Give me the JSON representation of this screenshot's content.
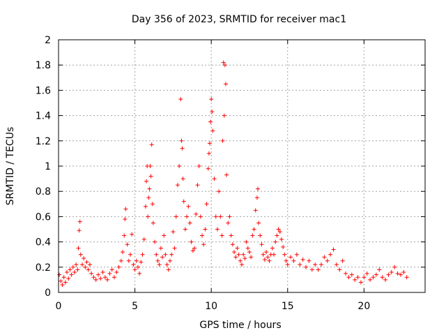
{
  "chart_data": {
    "type": "scatter",
    "title": "Day 356 of 2023, SRMTID for receiver mac1",
    "xlabel": "GPS time / hours",
    "ylabel": "SRMTID / TECUs",
    "xlim": [
      0,
      24
    ],
    "ylim": [
      0,
      2
    ],
    "xticks": [
      0,
      5,
      10,
      15,
      20
    ],
    "yticks": [
      0,
      0.2,
      0.4,
      0.6,
      0.8,
      1,
      1.2,
      1.4,
      1.6,
      1.8,
      2
    ],
    "xtick_labels": [
      "0",
      "5",
      "10",
      "15",
      "20"
    ],
    "ytick_labels": [
      "0",
      "0.2",
      "0.4",
      "0.6",
      "0.8",
      "1",
      "1.2",
      "1.4",
      "1.6",
      "1.8",
      "2"
    ],
    "grid": true,
    "marker": "+",
    "color": "#ff0000",
    "series": [
      {
        "name": "SRMTID",
        "points": [
          [
            0.05,
            0.14
          ],
          [
            0.15,
            0.09
          ],
          [
            0.25,
            0.06
          ],
          [
            0.35,
            0.12
          ],
          [
            0.45,
            0.08
          ],
          [
            0.55,
            0.16
          ],
          [
            0.65,
            0.11
          ],
          [
            0.75,
            0.18
          ],
          [
            0.85,
            0.14
          ],
          [
            0.95,
            0.2
          ],
          [
            1.05,
            0.16
          ],
          [
            1.15,
            0.22
          ],
          [
            1.25,
            0.18
          ],
          [
            1.3,
            0.35
          ],
          [
            1.35,
            0.49
          ],
          [
            1.4,
            0.56
          ],
          [
            1.45,
            0.3
          ],
          [
            1.55,
            0.22
          ],
          [
            1.65,
            0.27
          ],
          [
            1.75,
            0.2
          ],
          [
            1.85,
            0.24
          ],
          [
            1.95,
            0.18
          ],
          [
            2.05,
            0.22
          ],
          [
            2.15,
            0.15
          ],
          [
            2.3,
            0.12
          ],
          [
            2.45,
            0.1
          ],
          [
            2.6,
            0.14
          ],
          [
            2.75,
            0.11
          ],
          [
            2.9,
            0.16
          ],
          [
            3.05,
            0.12
          ],
          [
            3.2,
            0.1
          ],
          [
            3.35,
            0.15
          ],
          [
            3.5,
            0.18
          ],
          [
            3.65,
            0.12
          ],
          [
            3.8,
            0.16
          ],
          [
            3.95,
            0.2
          ],
          [
            4.1,
            0.25
          ],
          [
            4.2,
            0.32
          ],
          [
            4.3,
            0.45
          ],
          [
            4.35,
            0.58
          ],
          [
            4.4,
            0.66
          ],
          [
            4.5,
            0.38
          ],
          [
            4.6,
            0.25
          ],
          [
            4.7,
            0.3
          ],
          [
            4.8,
            0.46
          ],
          [
            4.9,
            0.22
          ],
          [
            5.0,
            0.18
          ],
          [
            5.1,
            0.25
          ],
          [
            5.2,
            0.2
          ],
          [
            5.3,
            0.15
          ],
          [
            5.4,
            0.24
          ],
          [
            5.5,
            0.3
          ],
          [
            5.6,
            0.42
          ],
          [
            5.7,
            0.68
          ],
          [
            5.75,
            0.88
          ],
          [
            5.8,
            1.0
          ],
          [
            5.85,
            0.6
          ],
          [
            5.9,
            0.75
          ],
          [
            5.95,
            0.82
          ],
          [
            6.0,
            1.0
          ],
          [
            6.05,
            0.92
          ],
          [
            6.1,
            1.17
          ],
          [
            6.15,
            0.7
          ],
          [
            6.2,
            0.55
          ],
          [
            6.3,
            0.4
          ],
          [
            6.4,
            0.3
          ],
          [
            6.5,
            0.25
          ],
          [
            6.6,
            0.22
          ],
          [
            6.7,
            0.35
          ],
          [
            6.8,
            0.28
          ],
          [
            6.9,
            0.45
          ],
          [
            7.0,
            0.3
          ],
          [
            7.1,
            0.22
          ],
          [
            7.2,
            0.18
          ],
          [
            7.3,
            0.25
          ],
          [
            7.4,
            0.3
          ],
          [
            7.5,
            0.48
          ],
          [
            7.6,
            0.35
          ],
          [
            7.7,
            0.6
          ],
          [
            7.8,
            0.85
          ],
          [
            7.9,
            1.0
          ],
          [
            8.0,
            1.53
          ],
          [
            8.05,
            1.2
          ],
          [
            8.1,
            1.14
          ],
          [
            8.15,
            0.9
          ],
          [
            8.2,
            0.72
          ],
          [
            8.3,
            0.5
          ],
          [
            8.4,
            0.6
          ],
          [
            8.5,
            0.68
          ],
          [
            8.6,
            0.55
          ],
          [
            8.7,
            0.4
          ],
          [
            8.8,
            0.33
          ],
          [
            8.9,
            0.35
          ],
          [
            9.0,
            0.62
          ],
          [
            9.1,
            0.85
          ],
          [
            9.2,
            1.0
          ],
          [
            9.3,
            0.6
          ],
          [
            9.4,
            0.45
          ],
          [
            9.5,
            0.38
          ],
          [
            9.6,
            0.5
          ],
          [
            9.7,
            0.7
          ],
          [
            9.8,
            0.98
          ],
          [
            9.85,
            1.1
          ],
          [
            9.9,
            1.18
          ],
          [
            9.95,
            1.35
          ],
          [
            10.0,
            1.53
          ],
          [
            10.05,
            1.43
          ],
          [
            10.1,
            1.28
          ],
          [
            10.2,
            0.9
          ],
          [
            10.3,
            0.6
          ],
          [
            10.4,
            0.5
          ],
          [
            10.5,
            0.8
          ],
          [
            10.6,
            0.6
          ],
          [
            10.7,
            0.45
          ],
          [
            10.75,
            1.2
          ],
          [
            10.8,
            1.82
          ],
          [
            10.85,
            1.4
          ],
          [
            10.9,
            1.8
          ],
          [
            10.95,
            1.65
          ],
          [
            11.0,
            0.93
          ],
          [
            11.1,
            0.55
          ],
          [
            11.2,
            0.6
          ],
          [
            11.3,
            0.45
          ],
          [
            11.4,
            0.38
          ],
          [
            11.5,
            0.32
          ],
          [
            11.6,
            0.28
          ],
          [
            11.7,
            0.35
          ],
          [
            11.8,
            0.3
          ],
          [
            11.9,
            0.25
          ],
          [
            12.0,
            0.22
          ],
          [
            12.1,
            0.3
          ],
          [
            12.2,
            0.27
          ],
          [
            12.3,
            0.4
          ],
          [
            12.4,
            0.35
          ],
          [
            12.5,
            0.32
          ],
          [
            12.6,
            0.28
          ],
          [
            12.7,
            0.45
          ],
          [
            12.8,
            0.5
          ],
          [
            12.9,
            0.65
          ],
          [
            13.0,
            0.75
          ],
          [
            13.05,
            0.82
          ],
          [
            13.1,
            0.55
          ],
          [
            13.2,
            0.45
          ],
          [
            13.3,
            0.38
          ],
          [
            13.4,
            0.3
          ],
          [
            13.5,
            0.26
          ],
          [
            13.6,
            0.32
          ],
          [
            13.7,
            0.28
          ],
          [
            13.8,
            0.25
          ],
          [
            13.9,
            0.3
          ],
          [
            14.0,
            0.35
          ],
          [
            14.1,
            0.3
          ],
          [
            14.2,
            0.4
          ],
          [
            14.3,
            0.45
          ],
          [
            14.4,
            0.5
          ],
          [
            14.5,
            0.48
          ],
          [
            14.6,
            0.42
          ],
          [
            14.7,
            0.36
          ],
          [
            14.8,
            0.3
          ],
          [
            14.9,
            0.25
          ],
          [
            15.0,
            0.22
          ],
          [
            15.2,
            0.28
          ],
          [
            15.4,
            0.25
          ],
          [
            15.6,
            0.3
          ],
          [
            15.8,
            0.22
          ],
          [
            16.0,
            0.26
          ],
          [
            16.2,
            0.2
          ],
          [
            16.4,
            0.25
          ],
          [
            16.6,
            0.18
          ],
          [
            16.8,
            0.22
          ],
          [
            17.0,
            0.18
          ],
          [
            17.2,
            0.22
          ],
          [
            17.4,
            0.28
          ],
          [
            17.6,
            0.25
          ],
          [
            17.8,
            0.3
          ],
          [
            18.0,
            0.34
          ],
          [
            18.2,
            0.22
          ],
          [
            18.4,
            0.18
          ],
          [
            18.6,
            0.25
          ],
          [
            18.8,
            0.15
          ],
          [
            19.0,
            0.12
          ],
          [
            19.2,
            0.14
          ],
          [
            19.4,
            0.1
          ],
          [
            19.6,
            0.12
          ],
          [
            19.8,
            0.08
          ],
          [
            20.0,
            0.12
          ],
          [
            20.2,
            0.15
          ],
          [
            20.4,
            0.1
          ],
          [
            20.6,
            0.12
          ],
          [
            20.8,
            0.14
          ],
          [
            21.0,
            0.18
          ],
          [
            21.2,
            0.12
          ],
          [
            21.4,
            0.1
          ],
          [
            21.6,
            0.14
          ],
          [
            21.8,
            0.16
          ],
          [
            22.0,
            0.2
          ],
          [
            22.2,
            0.15
          ],
          [
            22.4,
            0.14
          ],
          [
            22.6,
            0.16
          ],
          [
            22.8,
            0.12
          ]
        ]
      }
    ]
  }
}
